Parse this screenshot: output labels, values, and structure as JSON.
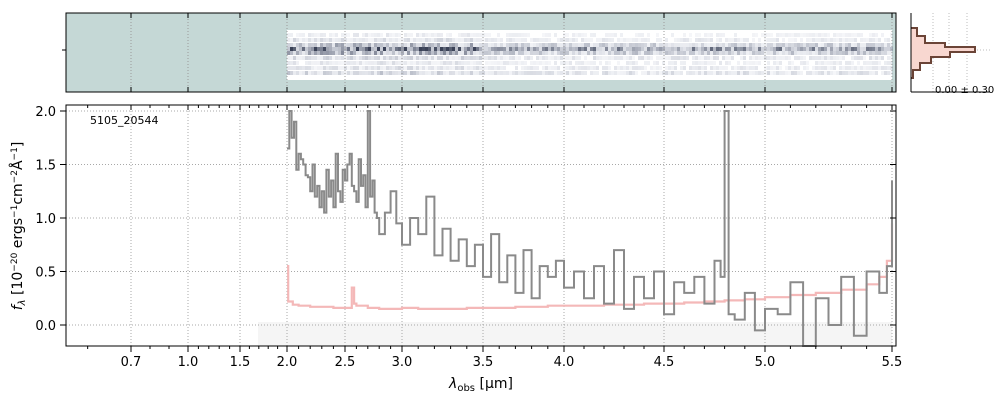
{
  "chart_data": {
    "type": "line",
    "title": "",
    "object_label": "5105_20544",
    "xlabel": "λobs [μm]",
    "ylabel": "fλ [10−20 ergs−1cm−2Å−1]",
    "ylim": [
      -0.2,
      2.05
    ],
    "xlim": [
      0.55,
      5.52
    ],
    "x_scale": "custom (stretched above 2 μm)",
    "grid": true,
    "x_ticks": [
      0.7,
      1.0,
      1.5,
      2.0,
      2.5,
      3.0,
      3.5,
      4.0,
      4.5,
      5.0,
      5.5
    ],
    "x_tick_labels": [
      "0.7",
      "1.0",
      "1.5",
      "2.0",
      "2.5",
      "3.0",
      "3.5",
      "4.0",
      "4.5",
      "5.0",
      "5.5"
    ],
    "y_ticks": [
      0.0,
      0.5,
      1.0,
      1.5,
      2.0
    ],
    "y_tick_labels": [
      "0.0",
      "0.5",
      "1.0",
      "1.5",
      "2.0"
    ],
    "side_panel_label": "0.00 ± 0.30",
    "colors": {
      "flux": "#8a8a8a",
      "error": "#f4b8b8",
      "twod_background": "#c5d8d6",
      "profile": "#6b4437",
      "profile_fill": "#f8d7d0"
    },
    "series": [
      {
        "key": "flux",
        "x": [
          2.0,
          2.02,
          2.04,
          2.06,
          2.08,
          2.1,
          2.12,
          2.14,
          2.16,
          2.18,
          2.2,
          2.22,
          2.24,
          2.26,
          2.28,
          2.3,
          2.32,
          2.34,
          2.36,
          2.38,
          2.4,
          2.42,
          2.44,
          2.46,
          2.48,
          2.5,
          2.52,
          2.54,
          2.56,
          2.58,
          2.6,
          2.62,
          2.64,
          2.66,
          2.68,
          2.7,
          2.72,
          2.74,
          2.76,
          2.78,
          2.8,
          2.85,
          2.9,
          2.95,
          3.0,
          3.05,
          3.1,
          3.15,
          3.2,
          3.25,
          3.3,
          3.35,
          3.4,
          3.45,
          3.5,
          3.55,
          3.6,
          3.65,
          3.7,
          3.75,
          3.8,
          3.85,
          3.9,
          3.95,
          4.0,
          4.05,
          4.1,
          4.15,
          4.2,
          4.25,
          4.3,
          4.35,
          4.4,
          4.45,
          4.5,
          4.55,
          4.6,
          4.65,
          4.7,
          4.75,
          4.78,
          4.8,
          4.82,
          4.85,
          4.9,
          4.95,
          5.0,
          5.05,
          5.1,
          5.15,
          5.2,
          5.25,
          5.3,
          5.35,
          5.4,
          5.45,
          5.48,
          5.5
        ],
        "y": [
          1.65,
          2.0,
          1.75,
          1.9,
          1.45,
          1.6,
          1.55,
          1.5,
          1.4,
          1.38,
          1.25,
          1.5,
          1.2,
          1.3,
          1.1,
          1.25,
          1.05,
          1.45,
          1.2,
          1.35,
          1.1,
          1.6,
          1.25,
          1.15,
          1.45,
          1.35,
          1.5,
          1.6,
          1.3,
          1.25,
          1.15,
          1.55,
          1.3,
          1.4,
          1.1,
          2.0,
          1.2,
          1.35,
          1.05,
          1.0,
          0.85,
          1.05,
          1.25,
          0.95,
          0.75,
          1.0,
          0.85,
          1.2,
          0.65,
          0.9,
          0.6,
          0.8,
          0.55,
          0.75,
          0.45,
          0.85,
          0.4,
          0.65,
          0.3,
          0.7,
          0.25,
          0.55,
          0.45,
          0.6,
          0.35,
          0.5,
          0.25,
          0.55,
          0.2,
          0.7,
          0.15,
          0.45,
          0.25,
          0.5,
          0.1,
          0.4,
          0.3,
          0.45,
          0.2,
          0.6,
          0.45,
          2.0,
          0.1,
          0.05,
          0.3,
          -0.05,
          0.15,
          0.1,
          0.4,
          -0.2,
          0.25,
          0.0,
          0.45,
          -0.1,
          0.5,
          0.3,
          0.55,
          1.35
        ]
      },
      {
        "key": "error",
        "x": [
          2.0,
          2.01,
          2.05,
          2.1,
          2.2,
          2.3,
          2.4,
          2.5,
          2.56,
          2.58,
          2.6,
          2.7,
          2.8,
          2.9,
          3.0,
          3.1,
          3.2,
          3.3,
          3.4,
          3.5,
          3.6,
          3.7,
          3.8,
          3.9,
          4.0,
          4.1,
          4.2,
          4.3,
          4.4,
          4.5,
          4.6,
          4.7,
          4.8,
          4.9,
          5.0,
          5.1,
          5.2,
          5.3,
          5.4,
          5.45,
          5.48,
          5.5
        ],
        "y": [
          0.55,
          0.22,
          0.19,
          0.18,
          0.17,
          0.17,
          0.16,
          0.16,
          0.35,
          0.2,
          0.18,
          0.16,
          0.15,
          0.15,
          0.16,
          0.15,
          0.15,
          0.15,
          0.16,
          0.16,
          0.16,
          0.17,
          0.17,
          0.18,
          0.18,
          0.18,
          0.19,
          0.19,
          0.2,
          0.2,
          0.21,
          0.22,
          0.23,
          0.24,
          0.26,
          0.28,
          0.3,
          0.33,
          0.38,
          0.45,
          0.6,
          0.95
        ]
      }
    ]
  }
}
